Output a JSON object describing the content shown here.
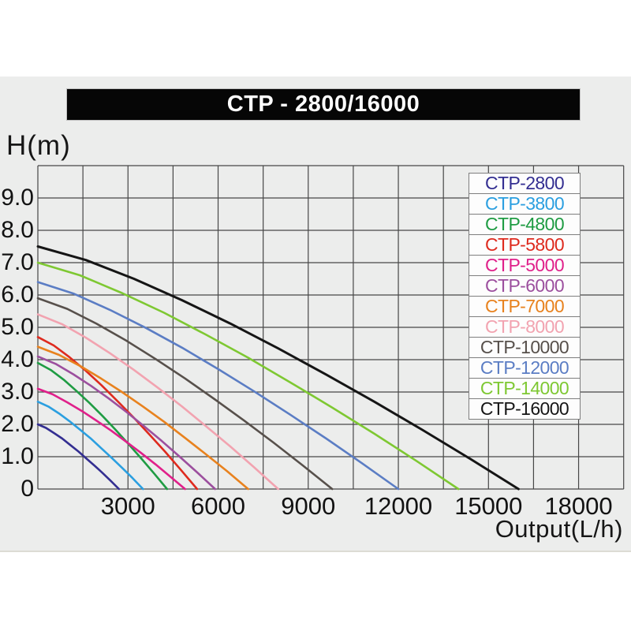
{
  "page": {
    "window_title": "CTP - 2800/16000"
  },
  "chart_data": {
    "type": "line",
    "title": "CTP - 2800/16000",
    "xlabel": "Output(L/h)",
    "ylabel": "H(m)",
    "xlim": [
      0,
      19500
    ],
    "ylim": [
      0,
      10
    ],
    "x_ticks": [
      "3000",
      "6000",
      "9000",
      "12000",
      "15000",
      "18000"
    ],
    "y_ticks": [
      "9.0",
      "8.0",
      "7.0",
      "6.0",
      "5.0",
      "4.0",
      "3.0",
      "2.0",
      "1.0",
      "0"
    ],
    "x_grid_step_lh": 1500,
    "y_grid_step_m": 1.0,
    "grid": true,
    "legend_position": "top-right",
    "series": [
      {
        "name": "CTP-2800",
        "color": "#332e91",
        "shutoff_head_m": 2.0,
        "max_flow_lh": 2700,
        "points": [
          [
            0,
            2.0
          ],
          [
            270,
            1.89
          ],
          [
            540,
            1.73
          ],
          [
            810,
            1.56
          ],
          [
            1080,
            1.36
          ],
          [
            1350,
            1.16
          ],
          [
            1620,
            0.94
          ],
          [
            1890,
            0.72
          ],
          [
            2160,
            0.49
          ],
          [
            2430,
            0.25
          ],
          [
            2700,
            0
          ]
        ]
      },
      {
        "name": "CTP-3800",
        "color": "#2b9fe0",
        "shutoff_head_m": 2.7,
        "max_flow_lh": 3500,
        "points": [
          [
            0,
            2.7
          ],
          [
            350,
            2.55
          ],
          [
            700,
            2.34
          ],
          [
            1050,
            2.1
          ],
          [
            1400,
            1.84
          ],
          [
            1750,
            1.57
          ],
          [
            2100,
            1.27
          ],
          [
            2450,
            0.97
          ],
          [
            2800,
            0.66
          ],
          [
            3150,
            0.34
          ],
          [
            3500,
            0
          ]
        ]
      },
      {
        "name": "CTP-4800",
        "color": "#1f9c43",
        "shutoff_head_m": 3.9,
        "max_flow_lh": 4300,
        "points": [
          [
            0,
            3.9
          ],
          [
            430,
            3.68
          ],
          [
            860,
            3.38
          ],
          [
            1290,
            3.03
          ],
          [
            1720,
            2.66
          ],
          [
            2150,
            2.26
          ],
          [
            2580,
            1.84
          ],
          [
            3010,
            1.4
          ],
          [
            3440,
            0.95
          ],
          [
            3870,
            0.48
          ],
          [
            4300,
            0
          ]
        ]
      },
      {
        "name": "CTP-5800",
        "color": "#de2a1e",
        "shutoff_head_m": 4.7,
        "max_flow_lh": 5300,
        "points": [
          [
            0,
            4.7
          ],
          [
            530,
            4.44
          ],
          [
            1060,
            4.07
          ],
          [
            1590,
            3.66
          ],
          [
            2120,
            3.21
          ],
          [
            2650,
            2.72
          ],
          [
            3180,
            2.22
          ],
          [
            3710,
            1.69
          ],
          [
            4240,
            1.15
          ],
          [
            4770,
            0.58
          ],
          [
            5300,
            0
          ]
        ]
      },
      {
        "name": "CTP-5000",
        "color": "#e0208a",
        "shutoff_head_m": 3.1,
        "max_flow_lh": 4900,
        "points": [
          [
            0,
            3.1
          ],
          [
            490,
            2.93
          ],
          [
            980,
            2.68
          ],
          [
            1470,
            2.41
          ],
          [
            1960,
            2.11
          ],
          [
            2450,
            1.8
          ],
          [
            2940,
            1.46
          ],
          [
            3430,
            1.12
          ],
          [
            3920,
            0.76
          ],
          [
            4410,
            0.38
          ],
          [
            4900,
            0
          ]
        ]
      },
      {
        "name": "CTP-6000",
        "color": "#9c4f9e",
        "shutoff_head_m": 4.1,
        "max_flow_lh": 5900,
        "points": [
          [
            0,
            4.1
          ],
          [
            590,
            3.87
          ],
          [
            1180,
            3.55
          ],
          [
            1770,
            3.19
          ],
          [
            2360,
            2.8
          ],
          [
            2950,
            2.38
          ],
          [
            3540,
            1.94
          ],
          [
            4130,
            1.48
          ],
          [
            4720,
            1.0
          ],
          [
            5310,
            0.51
          ],
          [
            5900,
            0
          ]
        ]
      },
      {
        "name": "CTP-7000",
        "color": "#e8821e",
        "shutoff_head_m": 4.4,
        "max_flow_lh": 7000,
        "points": [
          [
            0,
            4.4
          ],
          [
            700,
            4.15
          ],
          [
            1400,
            3.81
          ],
          [
            2100,
            3.42
          ],
          [
            2800,
            3.0
          ],
          [
            3500,
            2.55
          ],
          [
            4200,
            2.08
          ],
          [
            4900,
            1.58
          ],
          [
            5600,
            1.07
          ],
          [
            6300,
            0.55
          ],
          [
            7000,
            0
          ]
        ]
      },
      {
        "name": "CTP-8000",
        "color": "#f2a3b0",
        "shutoff_head_m": 5.4,
        "max_flow_lh": 8000,
        "points": [
          [
            0,
            5.4
          ],
          [
            800,
            5.1
          ],
          [
            1600,
            4.68
          ],
          [
            2400,
            4.2
          ],
          [
            3200,
            3.68
          ],
          [
            4000,
            3.13
          ],
          [
            4800,
            2.55
          ],
          [
            5600,
            1.94
          ],
          [
            6400,
            1.32
          ],
          [
            7200,
            0.67
          ],
          [
            8000,
            0
          ]
        ]
      },
      {
        "name": "CTP-10000",
        "color": "#57504b",
        "shutoff_head_m": 5.9,
        "max_flow_lh": 9800,
        "points": [
          [
            0,
            5.9
          ],
          [
            980,
            5.57
          ],
          [
            1960,
            5.11
          ],
          [
            2940,
            4.59
          ],
          [
            3920,
            4.02
          ],
          [
            4900,
            3.42
          ],
          [
            5880,
            2.78
          ],
          [
            6860,
            2.12
          ],
          [
            7840,
            1.44
          ],
          [
            8820,
            0.73
          ],
          [
            9800,
            0
          ]
        ]
      },
      {
        "name": "CTP-12000",
        "color": "#5b7dc4",
        "shutoff_head_m": 6.4,
        "max_flow_lh": 12000,
        "points": [
          [
            0,
            6.4
          ],
          [
            1200,
            6.04
          ],
          [
            2400,
            5.54
          ],
          [
            3600,
            4.98
          ],
          [
            4800,
            4.37
          ],
          [
            6000,
            3.71
          ],
          [
            7200,
            3.02
          ],
          [
            8400,
            2.3
          ],
          [
            9600,
            1.56
          ],
          [
            10800,
            0.79
          ],
          [
            12000,
            0
          ]
        ]
      },
      {
        "name": "CTP-14000",
        "color": "#7ec832",
        "shutoff_head_m": 7.0,
        "max_flow_lh": 14000,
        "points": [
          [
            0,
            7.0
          ],
          [
            1400,
            6.61
          ],
          [
            2800,
            6.06
          ],
          [
            4200,
            5.45
          ],
          [
            5600,
            4.77
          ],
          [
            7000,
            4.06
          ],
          [
            8400,
            3.3
          ],
          [
            9800,
            2.52
          ],
          [
            11200,
            1.71
          ],
          [
            12600,
            0.87
          ],
          [
            14000,
            0
          ]
        ]
      },
      {
        "name": "CTP-16000",
        "color": "#151515",
        "shutoff_head_m": 7.5,
        "max_flow_lh": 16000,
        "points": [
          [
            0,
            7.5
          ],
          [
            1600,
            7.08
          ],
          [
            3200,
            6.5
          ],
          [
            4800,
            5.84
          ],
          [
            6400,
            5.12
          ],
          [
            8000,
            4.35
          ],
          [
            9600,
            3.54
          ],
          [
            11200,
            2.7
          ],
          [
            12800,
            1.83
          ],
          [
            14400,
            0.93
          ],
          [
            16000,
            0
          ]
        ]
      }
    ],
    "colors": {
      "panel_background": "#ecedec",
      "grid_line": "#474747",
      "title_bar_background": "#060606",
      "title_text": "#ffffff",
      "legend_background": "#fdfdfd",
      "legend_border": "#7e7e7e"
    }
  }
}
